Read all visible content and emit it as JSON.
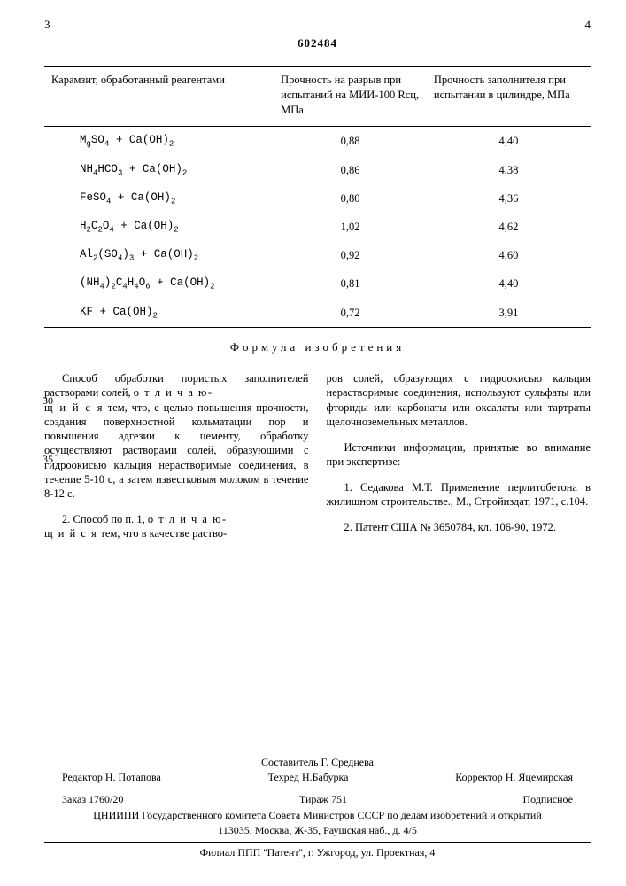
{
  "page_left": "3",
  "page_right": "4",
  "doc_number": "602484",
  "table": {
    "headers": [
      "Карамзит, обработанный реагентами",
      "Прочность на разрыв при испытаний на МИИ-100 Rсц, МПа",
      "Прочность заполнителя при испытании в цилиндре, МПа"
    ],
    "rows": [
      {
        "reagent_html": "M<span class='sub'>g</span>SO<span class='sub'>4</span> + Ca(OH)<span class='sub'>2</span>",
        "v1": "0,88",
        "v2": "4,40"
      },
      {
        "reagent_html": "NH<span class='sub'>4</span>HCO<span class='sub'>3</span> + Ca(OH)<span class='sub'>2</span>",
        "v1": "0,86",
        "v2": "4,38"
      },
      {
        "reagent_html": "FeSO<span class='sub'>4</span> + Ca(OH)<span class='sub'>2</span>",
        "v1": "0,80",
        "v2": "4,36"
      },
      {
        "reagent_html": "H<span class='sub'>2</span>C<span class='sub'>2</span>O<span class='sub'>4</span> + Ca(OH)<span class='sub'>2</span>",
        "v1": "1,02",
        "v2": "4,62"
      },
      {
        "reagent_html": "Al<span class='sub'>2</span>(SO<span class='sub'>4</span>)<span class='sub'>3</span> + Ca(OH)<span class='sub'>2</span>",
        "v1": "0,92",
        "v2": "4,60"
      },
      {
        "reagent_html": "(NH<span class='sub'>4</span>)<span class='sub'>2</span>C<span class='sub'>4</span>H<span class='sub'>4</span>O<span class='sub'>6</span> + Ca(OH)<span class='sub'>2</span>",
        "v1": "0,81",
        "v2": "4,40"
      },
      {
        "reagent_html": "KF + Ca(OH)<span class='sub'>2</span>",
        "v1": "0,72",
        "v2": "3,91"
      }
    ]
  },
  "formula_title": "Формула изобретения",
  "left_col": {
    "p1a": "Способ обработки пористых заполнителей растворами солей, ",
    "p1b": "о т л и ч а ю-",
    "p1c": "щ и й с я",
    "p1d": " тем, что, с целью повышения прочности, создания поверхностной кольматации пор и повышения адгезии к цементу, обработку осуществляют растворами солей, образующими с гидроокисью кальция нерастворимые соединения, в течение 5-10 с, а затем известковым молоком в течение 8-12 с.",
    "p2a": "2. Способ по п. 1, ",
    "p2b": "о т л и ч а ю-",
    "p2c": "щ и й с я",
    "p2d": " тем, что в качестве раство-"
  },
  "right_col": {
    "p1": "ров солей, образующих с гидроокисью кальция нерастворимые соединения, используют сульфаты или фториды или карбонаты или оксалаты или тартраты щелочноземельных металлов.",
    "p2_title": "Источники информации, принятые во внимание при экспертизе:",
    "ref1": "1. Седакова М.Т. Применение перлитобетона в жилищном строительстве., М., Стройиздат, 1971, с.104.",
    "ref2": "2. Патент США № 3650784, кл. 106-90, 1972."
  },
  "side_30": "30",
  "side_35": "35",
  "footer": {
    "compiler": "Составитель Г. Среднева",
    "editor": "Редактор Н. Потапова",
    "techred": "Техред Н.Бабурка",
    "corrector": "Корректор Н. Яцемирская",
    "order": "Заказ 1760/20",
    "tirazh": "Тираж 751",
    "subscript": "Подписное",
    "org": "ЦНИИПИ Государственного комитета Совета Министров СССР по делам изобретений и открытий",
    "address": "113035, Москва, Ж-35, Раушская наб., д. 4/5",
    "filial": "Филиал ППП ''Патент'', г. Ужгород, ул. Проектная, 4"
  }
}
